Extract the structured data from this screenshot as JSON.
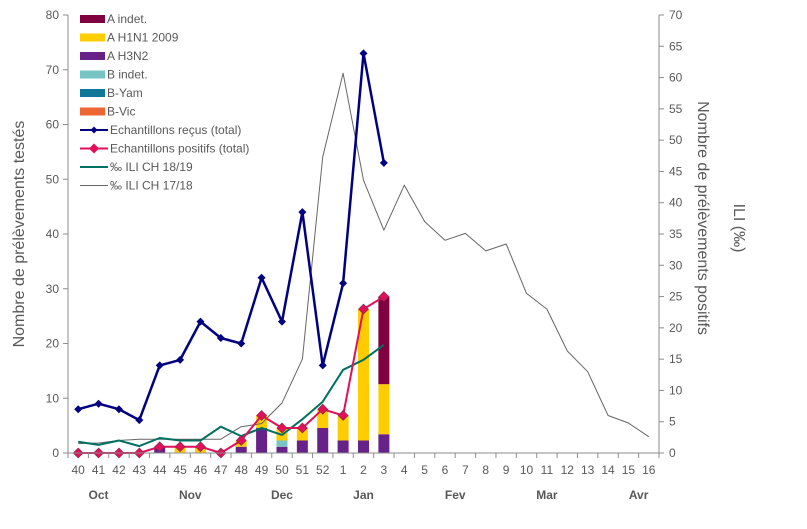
{
  "chart_data": {
    "type": "bar",
    "title": "",
    "xlabel": "",
    "ylabel_left": "Nombre de prélèvements testés",
    "ylabel_right": "Nombre de prélèvements positifs",
    "ylabel_right2": "ILI (‰)",
    "ylim_left": [
      0,
      80
    ],
    "ylim_right": [
      0,
      70
    ],
    "yticks_left": [
      0,
      10,
      20,
      30,
      40,
      50,
      60,
      70,
      80
    ],
    "yticks_right": [
      0,
      5,
      10,
      15,
      20,
      25,
      30,
      35,
      40,
      45,
      50,
      55,
      60,
      65,
      70
    ],
    "grid": false,
    "legend_position": "top-left",
    "categories": [
      "40",
      "41",
      "42",
      "43",
      "44",
      "45",
      "46",
      "47",
      "48",
      "49",
      "50",
      "51",
      "52",
      "1",
      "2",
      "3",
      "4",
      "5",
      "6",
      "7",
      "8",
      "9",
      "10",
      "11",
      "12",
      "13",
      "14",
      "15",
      "16"
    ],
    "months": [
      {
        "label": "Oct",
        "at_category": "41"
      },
      {
        "label": "Nov",
        "at_category": "45.5"
      },
      {
        "label": "Dec",
        "at_category": "50"
      },
      {
        "label": "Jan",
        "at_category": "2"
      },
      {
        "label": "Fev",
        "at_category": "6.5"
      },
      {
        "label": "Mar",
        "at_category": "11"
      },
      {
        "label": "Avr",
        "at_category": "15.5"
      }
    ],
    "stacked_bars": [
      {
        "name": "A H3N2",
        "color": "#662288",
        "axis": "right",
        "values": [
          0,
          0,
          0,
          0,
          1,
          0,
          0,
          0,
          1,
          4,
          1,
          2,
          4,
          2,
          2,
          3,
          null,
          null,
          null,
          null,
          null,
          null,
          null,
          null,
          null,
          null,
          null,
          null,
          null
        ]
      },
      {
        "name": "B indet.",
        "color": "#77C4C4",
        "axis": "right",
        "values": [
          0,
          0,
          0,
          0,
          0,
          0,
          0,
          0,
          0,
          0,
          1,
          0,
          0,
          0,
          0,
          0,
          null,
          null,
          null,
          null,
          null,
          null,
          null,
          null,
          null,
          null,
          null,
          null,
          null
        ]
      },
      {
        "name": "B-Yam",
        "color": "#117799",
        "axis": "right",
        "values": [
          0,
          0,
          0,
          0,
          0,
          0,
          0,
          0,
          0,
          0,
          0,
          0,
          0,
          0,
          0,
          0,
          null,
          null,
          null,
          null,
          null,
          null,
          null,
          null,
          null,
          null,
          null,
          null,
          null
        ]
      },
      {
        "name": "B-Vic",
        "color": "#EE6633",
        "axis": "right",
        "values": [
          0,
          0,
          0,
          0,
          0,
          0,
          0,
          0,
          0,
          0,
          0,
          0,
          0,
          0,
          0,
          0,
          null,
          null,
          null,
          null,
          null,
          null,
          null,
          null,
          null,
          null,
          null,
          null,
          null
        ]
      },
      {
        "name": "A H1N1 2009",
        "color": "#FFCC00",
        "axis": "right",
        "values": [
          0,
          0,
          0,
          0,
          0,
          1,
          1,
          0,
          1,
          2,
          2,
          2,
          3,
          4,
          21,
          8,
          null,
          null,
          null,
          null,
          null,
          null,
          null,
          null,
          null,
          null,
          null,
          null,
          null
        ]
      },
      {
        "name": "A indet.",
        "color": "#800040",
        "axis": "right",
        "values": [
          0,
          0,
          0,
          0,
          0,
          0,
          0,
          0,
          0,
          0,
          0,
          0,
          0,
          0,
          0,
          14,
          null,
          null,
          null,
          null,
          null,
          null,
          null,
          null,
          null,
          null,
          null,
          null,
          null
        ]
      }
    ],
    "lines": [
      {
        "name": "Echantillons reçus (total)",
        "color": "#000080",
        "axis": "left",
        "marker": "diamond-small",
        "width": 2.5,
        "values": [
          8,
          9,
          8,
          6,
          16,
          17,
          24,
          21,
          20,
          32,
          24,
          44,
          16,
          31,
          73,
          53,
          null,
          null,
          null,
          null,
          null,
          null,
          null,
          null,
          null,
          null,
          null,
          null,
          null
        ]
      },
      {
        "name": "Echantillons positifs (total)",
        "color": "#E0105A",
        "axis": "right",
        "marker": "diamond",
        "width": 2,
        "values": [
          0,
          0,
          0,
          0,
          1,
          1,
          1,
          0,
          2,
          6,
          4,
          4,
          7,
          6,
          23,
          25,
          null,
          null,
          null,
          null,
          null,
          null,
          null,
          null,
          null,
          null,
          null,
          null,
          null
        ]
      },
      {
        "name": "‰ ILI CH 18/19",
        "color": "#007060",
        "axis": "right",
        "marker": "none",
        "width": 2,
        "values": [
          1.8,
          1.3,
          2.0,
          1.1,
          2.4,
          2.0,
          2.0,
          4.2,
          2.7,
          4.0,
          2.9,
          5.4,
          8.2,
          13.3,
          14.9,
          17.3,
          null,
          null,
          null,
          null,
          null,
          null,
          null,
          null,
          null,
          null,
          null,
          null,
          null
        ]
      },
      {
        "name": "‰ ILI CH 17/18",
        "color": "#666666",
        "axis": "right",
        "marker": "none",
        "width": 1,
        "values": [
          1.5,
          1.6,
          2.0,
          2.2,
          2.2,
          2.2,
          2.2,
          2.2,
          4.2,
          4.7,
          8.0,
          15.0,
          47.3,
          60.7,
          43.6,
          35.6,
          42.8,
          37.0,
          34.0,
          35.1,
          32.3,
          33.4,
          25.5,
          23.0,
          16.3,
          13.0,
          6.0,
          4.8,
          2.6
        ]
      }
    ],
    "legend": [
      {
        "label": "A indet.",
        "type": "bar",
        "color": "#800040"
      },
      {
        "label": "A H1N1 2009",
        "type": "bar",
        "color": "#FFCC00"
      },
      {
        "label": "A H3N2",
        "type": "bar",
        "color": "#662288"
      },
      {
        "label": "B indet.",
        "type": "bar",
        "color": "#77C4C4"
      },
      {
        "label": "B-Yam",
        "type": "bar",
        "color": "#117799"
      },
      {
        "label": "B-Vic",
        "type": "bar",
        "color": "#EE6633"
      },
      {
        "label": "Echantillons reçus (total)",
        "type": "line-marker-small",
        "color": "#000080"
      },
      {
        "label": "Echantillons positifs (total)",
        "type": "line-marker",
        "color": "#E0105A"
      },
      {
        "label": "‰ ILI CH 18/19",
        "type": "line",
        "color": "#007060"
      },
      {
        "label": "‰ ILI CH 17/18",
        "type": "line-thin",
        "color": "#666666"
      }
    ]
  }
}
